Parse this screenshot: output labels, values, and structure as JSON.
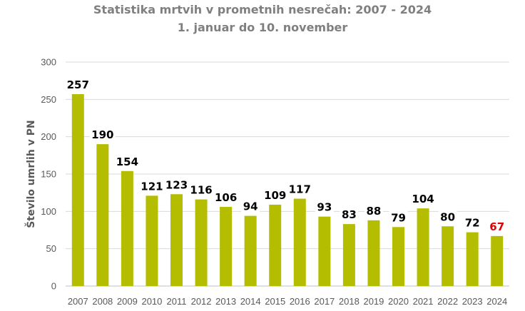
{
  "chart_data": {
    "type": "bar",
    "title": "Statistika mrtvih v prometnih nesrečah: 2007 - 2024",
    "subtitle": "1. januar do 10. november",
    "xlabel": "",
    "ylabel": "Število umrlih v PN",
    "ylim": [
      0,
      300
    ],
    "yticks": [
      "0",
      "50",
      "100",
      "150",
      "200",
      "250",
      "300"
    ],
    "grid": true,
    "categories": [
      "2007",
      "2008",
      "2009",
      "2010",
      "2011",
      "2012",
      "2013",
      "2014",
      "2015",
      "2016",
      "2017",
      "2018",
      "2019",
      "2020",
      "2021",
      "2022",
      "2023",
      "2024"
    ],
    "values": [
      257,
      190,
      154,
      121,
      123,
      116,
      106,
      94,
      109,
      117,
      93,
      83,
      88,
      79,
      104,
      80,
      72,
      67
    ],
    "bar_color": "#b5bd00",
    "label_color": "#000000",
    "highlight_label_color": "#e00000",
    "highlight_index": 17
  }
}
